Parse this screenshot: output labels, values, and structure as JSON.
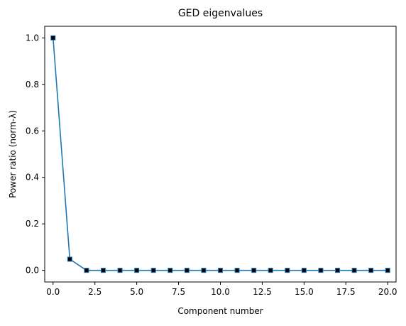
{
  "chart_data": {
    "type": "line",
    "title": "GED eigenvalues",
    "xlabel": "Component number",
    "ylabel": "Power ratio (norm-λ)",
    "xlim": [
      -0.5,
      20.5
    ],
    "ylim": [
      -0.05,
      1.05
    ],
    "xticks": [
      0.0,
      2.5,
      5.0,
      7.5,
      10.0,
      12.5,
      15.0,
      17.5,
      20.0
    ],
    "xtick_labels": [
      "0.0",
      "2.5",
      "5.0",
      "7.5",
      "10.0",
      "12.5",
      "15.0",
      "17.5",
      "20.0"
    ],
    "yticks": [
      0.0,
      0.2,
      0.4,
      0.6,
      0.8,
      1.0
    ],
    "ytick_labels": [
      "0.0",
      "0.2",
      "0.4",
      "0.6",
      "0.8",
      "1.0"
    ],
    "grid": false,
    "series": [
      {
        "x": [
          0,
          1,
          2,
          3,
          4,
          5,
          6,
          7,
          8,
          9,
          10,
          11,
          12,
          13,
          14,
          15,
          16,
          17,
          18,
          19,
          20
        ],
        "y": [
          1.0,
          0.048,
          0.0,
          0.0,
          0.0,
          0.0,
          0.0,
          0.0,
          0.0,
          0.0,
          0.0,
          0.0,
          0.0,
          0.0,
          0.0,
          0.0,
          0.0,
          0.0,
          0.0,
          0.0,
          0.0
        ],
        "line_color": "#1f77b4",
        "marker": "square",
        "marker_face_color": "#000000",
        "marker_edge_color": "#1f77b4"
      }
    ]
  }
}
